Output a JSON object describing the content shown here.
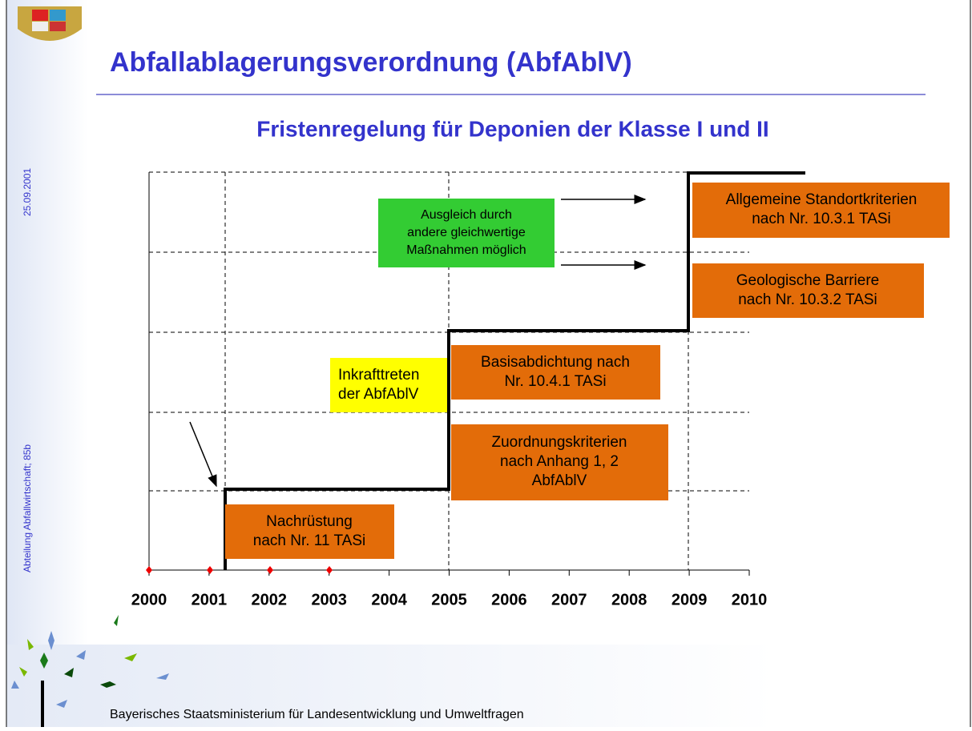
{
  "header": {
    "title": "Abfallablagerungsverordnung (AbfAblV)",
    "subtitle": "Fristenregelung für Deponien der Klasse I und II"
  },
  "side": {
    "date": "25.09.2001",
    "department": "Abteilung Abfallwirtschaft; 85b"
  },
  "timeline": {
    "years": [
      "2000",
      "2001",
      "2002",
      "2003",
      "2004",
      "2005",
      "2006",
      "2007",
      "2008",
      "2009",
      "2010"
    ]
  },
  "boxes": {
    "standort": [
      "Allgemeine Standortkriterien",
      "nach Nr. 10.3.1 TASi"
    ],
    "barriere": [
      "Geologische Barriere",
      "nach Nr. 10.3.2 TASi"
    ],
    "basis": [
      "Basisabdichtung nach",
      "Nr. 10.4.1 TASi"
    ],
    "zuordnung": [
      "Zuordnungskriterien",
      "nach Anhang 1, 2",
      "AbfAblV"
    ],
    "nachruestung": [
      "Nachrüstung",
      "nach Nr. 11 TASi"
    ],
    "ausgleich": [
      "Ausgleich durch",
      "andere gleichwertige",
      "Maßnahmen möglich"
    ],
    "inkraft": [
      "Inkrafttreten",
      "der AbfAblV"
    ]
  },
  "footer": "Bayerisches Staatsministerium für Landesentwicklung und Umweltfragen"
}
